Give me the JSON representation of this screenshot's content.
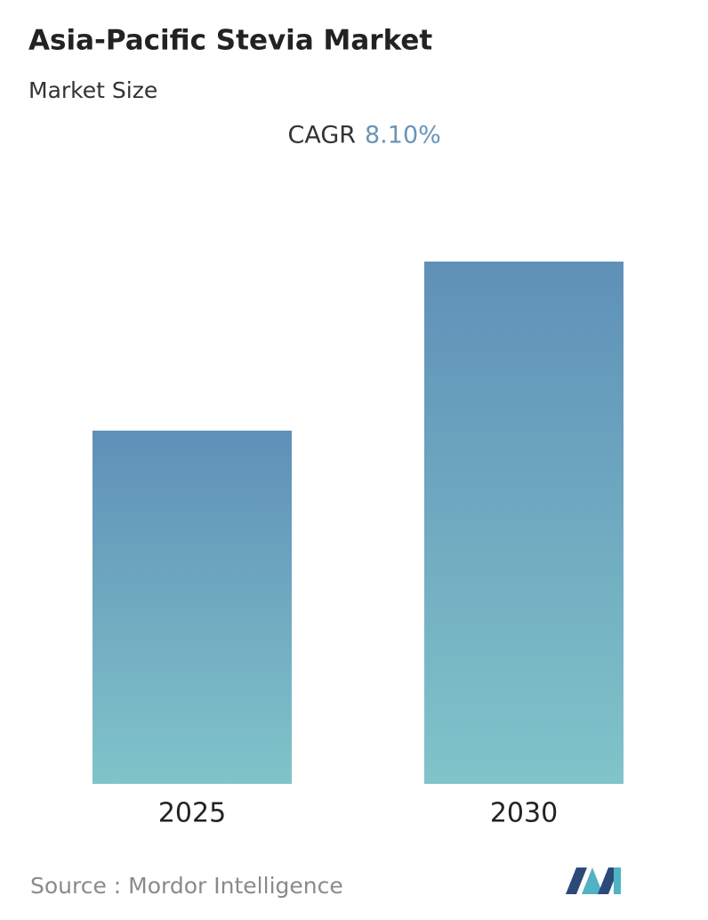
{
  "chart_data": {
    "type": "bar",
    "title": "Asia-Pacific Stevia Market",
    "subtitle": "Market Size",
    "cagr_label": "CAGR",
    "cagr_value": "8.10%",
    "categories": [
      "2025",
      "2030"
    ],
    "values": [
      397,
      587
    ],
    "ylim": [
      0,
      600
    ],
    "color_top": "#5f90b8",
    "color_bottom": "#80c4c9",
    "source": "Source :  Mordor Intelligence"
  }
}
